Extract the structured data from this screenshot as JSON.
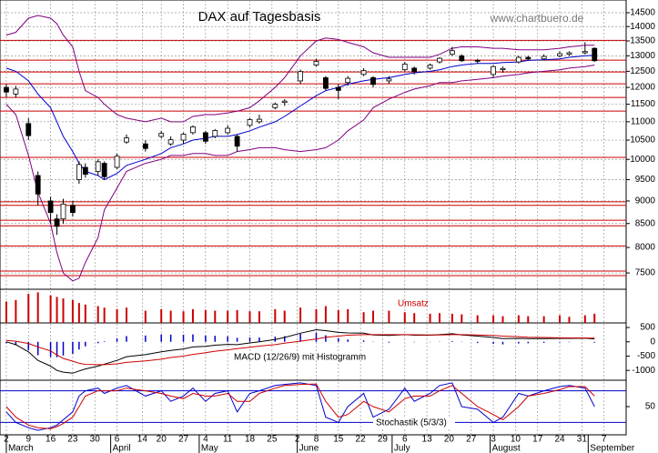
{
  "source": "www.chartbuero.de",
  "chart_data": [
    {
      "type": "candlestick",
      "title": "DAX auf Tagesbasis",
      "log": true,
      "grid": true,
      "xlim": [
        -2,
        196
      ],
      "ylim": [
        7330,
        14975
      ],
      "yticks": [
        7500,
        8000,
        8500,
        9000,
        9500,
        10000,
        10500,
        11000,
        11500,
        12000,
        12500,
        13000,
        13500,
        14000,
        14500
      ],
      "xticks": [
        {
          "value": 0,
          "label": "2"
        },
        {
          "value": 7,
          "label": "9"
        },
        {
          "value": 14,
          "label": "16"
        },
        {
          "value": 21,
          "label": "23"
        },
        {
          "value": 28,
          "label": "30"
        },
        {
          "value": 35,
          "label": "6"
        },
        {
          "value": 43,
          "label": "14"
        },
        {
          "value": 49,
          "label": "20"
        },
        {
          "value": 56,
          "label": "27"
        },
        {
          "value": 63,
          "label": "4"
        },
        {
          "value": 70,
          "label": "11"
        },
        {
          "value": 77,
          "label": "18"
        },
        {
          "value": 84,
          "label": "25"
        },
        {
          "value": 92,
          "label": "2"
        },
        {
          "value": 98,
          "label": "8"
        },
        {
          "value": 105,
          "label": "15"
        },
        {
          "value": 112,
          "label": "22"
        },
        {
          "value": 119,
          "label": "29"
        },
        {
          "value": 126,
          "label": "6"
        },
        {
          "value": 133,
          "label": "13"
        },
        {
          "value": 140,
          "label": "20"
        },
        {
          "value": 147,
          "label": "27"
        },
        {
          "value": 154,
          "label": "3"
        },
        {
          "value": 161,
          "label": "10"
        },
        {
          "value": 168,
          "label": "17"
        },
        {
          "value": 175,
          "label": "24"
        },
        {
          "value": 182,
          "label": "31"
        },
        {
          "value": 189,
          "label": "7"
        }
      ],
      "months": [
        {
          "value": 0,
          "label": "March"
        },
        {
          "value": 33,
          "label": "April"
        },
        {
          "value": 61,
          "label": "May"
        },
        {
          "value": 92,
          "label": "June"
        },
        {
          "value": 122,
          "label": "July"
        },
        {
          "value": 153,
          "label": "August"
        },
        {
          "value": 184,
          "label": "September"
        }
      ],
      "levels": [
        13520,
        12860,
        12480,
        12110,
        11700,
        11300,
        10050,
        8980,
        8900,
        8570,
        8450,
        8030,
        7535,
        7450
      ],
      "level_color": "#cc0000",
      "up_color": "#ffffff",
      "down_color": "#000000",
      "x": [
        0,
        3,
        7,
        10,
        14,
        16,
        18,
        21,
        23,
        25,
        29,
        31,
        35,
        38,
        44,
        49,
        52,
        56,
        59,
        63,
        66,
        70,
        73,
        77,
        80,
        85,
        88,
        93,
        98,
        101,
        105,
        108,
        113,
        116,
        121,
        126,
        129,
        134,
        137,
        141,
        144,
        149,
        154,
        157,
        162,
        165,
        170,
        175,
        178,
        183,
        186
      ],
      "open": [
        12000,
        11800,
        10950,
        9600,
        9000,
        8600,
        8600,
        8900,
        9500,
        9800,
        9700,
        9900,
        9800,
        10450,
        10400,
        10600,
        10400,
        10500,
        10700,
        10700,
        10600,
        10700,
        10600,
        10900,
        11000,
        11400,
        11550,
        12200,
        12700,
        12300,
        12000,
        12150,
        12400,
        12300,
        12200,
        12550,
        12600,
        12600,
        12800,
        13050,
        13000,
        12850,
        12400,
        12550,
        12800,
        12950,
        12900,
        13000,
        13050,
        13100,
        13250
      ],
      "high": [
        12100,
        12050,
        11100,
        9700,
        9100,
        8700,
        9050,
        9000,
        9950,
        9900,
        10000,
        9950,
        10150,
        10650,
        10500,
        10750,
        10600,
        10700,
        10900,
        10750,
        10800,
        10900,
        10650,
        11100,
        11200,
        11550,
        11650,
        12550,
        12900,
        12350,
        12100,
        12350,
        12600,
        12350,
        12350,
        12800,
        12650,
        12750,
        12950,
        13300,
        13050,
        12900,
        12700,
        12650,
        13000,
        13000,
        13050,
        13150,
        13150,
        13460,
        13280
      ],
      "low": [
        11700,
        11700,
        10500,
        8900,
        8500,
        8260,
        8500,
        8650,
        9400,
        9550,
        9600,
        9500,
        9750,
        10400,
        10200,
        10550,
        10350,
        10400,
        10650,
        10400,
        10550,
        10650,
        10200,
        10850,
        10950,
        11350,
        11450,
        12100,
        12650,
        11900,
        11650,
        12050,
        12350,
        12000,
        12100,
        12500,
        12400,
        12550,
        12750,
        13000,
        12800,
        12750,
        12300,
        12450,
        12750,
        12850,
        12850,
        12950,
        13000,
        13050,
        12800
      ],
      "close": [
        11860,
        11950,
        10620,
        9160,
        8740,
        8440,
        8930,
        8740,
        9870,
        9630,
        9940,
        9570,
        10080,
        10560,
        10280,
        10680,
        10510,
        10660,
        10860,
        10470,
        10760,
        10820,
        10340,
        11060,
        11070,
        11500,
        11590,
        12490,
        12820,
        11970,
        11910,
        12280,
        12520,
        12090,
        12260,
        12730,
        12490,
        12700,
        12920,
        13170,
        12840,
        12820,
        12650,
        12590,
        12950,
        12900,
        12980,
        13070,
        13100,
        13140,
        12840
      ],
      "bollinger": [
        {
          "color": "#800080",
          "values": [
            13700,
            13800,
            14300,
            14400,
            14300,
            14100,
            13700,
            13300,
            12500,
            11900,
            11700,
            11500,
            11200,
            11100,
            11000,
            11100,
            11000,
            11000,
            11150,
            11200,
            11200,
            11250,
            11300,
            11400,
            11600,
            12000,
            12300,
            13000,
            13500,
            13600,
            13550,
            13450,
            13300,
            13100,
            12950,
            12950,
            12950,
            12950,
            13050,
            13250,
            13300,
            13300,
            13250,
            13250,
            13200,
            13200,
            13200,
            13250,
            13300,
            13350,
            13350
          ]
        },
        {
          "color": "#0000cc",
          "values": [
            12600,
            12500,
            12200,
            11800,
            11400,
            11000,
            10600,
            10200,
            9900,
            9700,
            9600,
            9500,
            9650,
            9850,
            10000,
            10150,
            10300,
            10400,
            10500,
            10550,
            10600,
            10600,
            10650,
            10750,
            10850,
            11000,
            11150,
            11450,
            11750,
            11900,
            12000,
            12100,
            12200,
            12250,
            12300,
            12400,
            12450,
            12500,
            12550,
            12650,
            12700,
            12750,
            12750,
            12780,
            12800,
            12850,
            12870,
            12900,
            12950,
            13000,
            13020
          ]
        },
        {
          "color": "#800080",
          "values": [
            11500,
            11200,
            10100,
            9200,
            8500,
            7900,
            7500,
            7350,
            7400,
            7700,
            8200,
            8800,
            9300,
            9700,
            9900,
            10000,
            10100,
            10100,
            10150,
            10150,
            10100,
            10100,
            10200,
            10250,
            10300,
            10300,
            10250,
            10200,
            10250,
            10300,
            10500,
            10750,
            11050,
            11400,
            11650,
            11850,
            11950,
            12050,
            12150,
            12150,
            12200,
            12250,
            12300,
            12350,
            12400,
            12450,
            12500,
            12550,
            12600,
            12650,
            12700
          ]
        }
      ]
    },
    {
      "type": "bar",
      "label": "Umsatz",
      "color": "#cc0000",
      "ylim": [
        0,
        110
      ],
      "values": [
        70,
        75,
        95,
        100,
        90,
        85,
        80,
        75,
        65,
        60,
        55,
        50,
        45,
        50,
        40,
        45,
        40,
        38,
        45,
        42,
        40,
        40,
        42,
        38,
        38,
        45,
        40,
        50,
        45,
        55,
        42,
        45,
        35,
        40,
        40,
        35,
        32,
        30,
        32,
        30,
        28,
        25,
        25,
        22,
        25,
        22,
        22,
        25,
        20,
        25,
        30
      ]
    },
    {
      "type": "macd",
      "label": "MACD (12/26/9) mit Histogramm",
      "ylim": [
        -1280,
        660
      ],
      "yticks": [
        500,
        0,
        -500,
        -1000
      ],
      "histogram": {
        "color": "#0000cc",
        "values": [
          -50,
          -120,
          -290,
          -470,
          -530,
          -540,
          -480,
          -420,
          -270,
          -160,
          -50,
          20,
          120,
          200,
          220,
          260,
          250,
          250,
          260,
          220,
          210,
          190,
          140,
          150,
          150,
          180,
          200,
          280,
          320,
          230,
          130,
          80,
          50,
          -10,
          -30,
          0,
          -15,
          -10,
          10,
          30,
          -10,
          -40,
          -70,
          -90,
          -60,
          -50,
          -40,
          -20,
          -15,
          -5,
          -30
        ]
      },
      "lines": [
        {
          "color": "#000000",
          "values": [
            0,
            -100,
            -350,
            -650,
            -850,
            -1000,
            -1060,
            -1100,
            -1020,
            -950,
            -850,
            -780,
            -650,
            -520,
            -450,
            -350,
            -300,
            -250,
            -180,
            -160,
            -120,
            -90,
            -100,
            -40,
            0,
            80,
            150,
            300,
            420,
            390,
            330,
            310,
            300,
            240,
            220,
            250,
            230,
            230,
            250,
            280,
            240,
            200,
            150,
            110,
            120,
            110,
            110,
            120,
            120,
            130,
            100
          ]
        },
        {
          "color": "#cc0000",
          "values": [
            50,
            20,
            -60,
            -180,
            -320,
            -460,
            -580,
            -680,
            -750,
            -790,
            -800,
            -800,
            -770,
            -720,
            -670,
            -610,
            -550,
            -500,
            -440,
            -380,
            -330,
            -280,
            -240,
            -190,
            -150,
            -100,
            -50,
            20,
            100,
            160,
            200,
            230,
            250,
            250,
            250,
            250,
            245,
            240,
            240,
            250,
            250,
            240,
            220,
            200,
            180,
            160,
            150,
            140,
            135,
            135,
            130
          ]
        }
      ]
    },
    {
      "type": "line",
      "label": "Stochastik (5/3/3)",
      "ylim": [
        0,
        100
      ],
      "yticks": [
        50
      ],
      "levels": [
        20,
        80
      ],
      "level_color": "#0000cc",
      "lines": [
        {
          "color": "#0000cc",
          "values": [
            40,
            20,
            10,
            5,
            10,
            15,
            25,
            40,
            70,
            80,
            85,
            75,
            85,
            90,
            70,
            80,
            60,
            70,
            85,
            60,
            75,
            80,
            40,
            75,
            80,
            90,
            92,
            95,
            90,
            30,
            20,
            50,
            75,
            30,
            45,
            85,
            60,
            75,
            90,
            95,
            50,
            45,
            20,
            30,
            75,
            70,
            80,
            88,
            90,
            85,
            50
          ]
        },
        {
          "color": "#cc0000",
          "values": [
            50,
            30,
            15,
            10,
            8,
            12,
            18,
            30,
            50,
            70,
            80,
            80,
            80,
            85,
            80,
            75,
            70,
            65,
            75,
            70,
            70,
            75,
            60,
            60,
            75,
            85,
            90,
            92,
            93,
            60,
            30,
            35,
            60,
            50,
            40,
            65,
            70,
            70,
            80,
            90,
            75,
            50,
            35,
            25,
            50,
            70,
            75,
            82,
            88,
            88,
            70
          ]
        }
      ]
    }
  ]
}
